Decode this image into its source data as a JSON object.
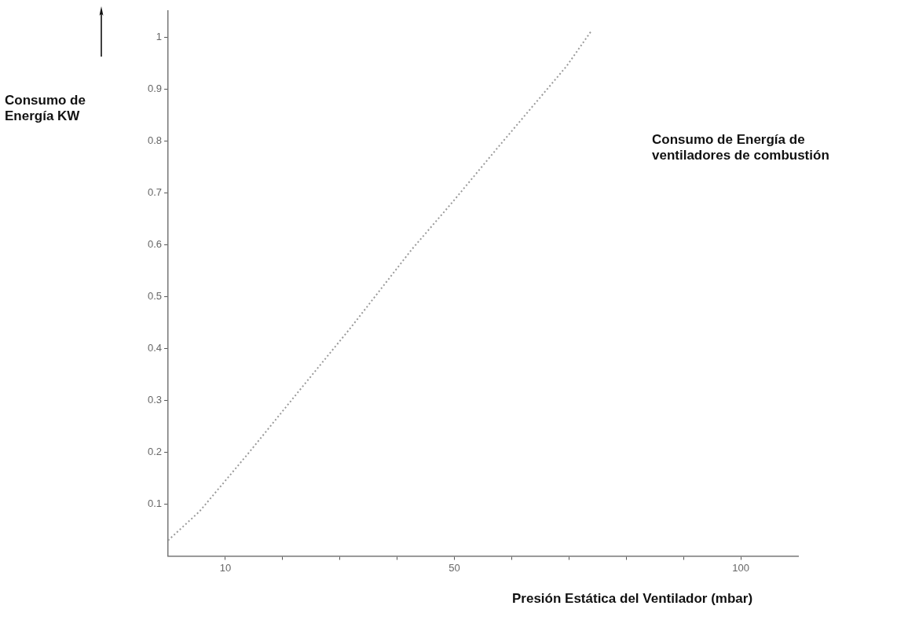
{
  "chart_data": {
    "type": "line",
    "title": "Consumo de Energía de ventiladores de combustión",
    "xlabel": "Presión Estática del Ventilador (mbar)",
    "ylabel": "Consumo de Energía KW",
    "x": [
      0,
      5.5,
      14.1,
      23.3,
      31.9,
      42.5,
      49.6,
      57.5,
      69.6,
      73.8
    ],
    "series": [
      {
        "color": "#9a9a9a",
        "values": [
          0.03,
          0.086,
          0.199,
          0.324,
          0.44,
          0.59,
          0.681,
          0.786,
          0.944,
          1.01
        ]
      }
    ],
    "xlim": [
      0,
      110
    ],
    "xticks": [
      {
        "value": 10,
        "label": "10"
      },
      {
        "value": 20,
        "label": null
      },
      {
        "value": 30,
        "label": null
      },
      {
        "value": 40,
        "label": null
      },
      {
        "value": 50,
        "label": "50"
      },
      {
        "value": 60,
        "label": null
      },
      {
        "value": 70,
        "label": null
      },
      {
        "value": 80,
        "label": null
      },
      {
        "value": 90,
        "label": null
      },
      {
        "value": 100,
        "label": "100"
      }
    ],
    "ylim": [
      0,
      1.05
    ],
    "yticks": [
      0.1,
      0.2,
      0.3,
      0.4,
      0.5,
      0.6,
      0.7,
      0.8,
      0.9,
      1
    ],
    "grid": false,
    "legend": false,
    "marker": "none",
    "line_style": "dotted"
  }
}
